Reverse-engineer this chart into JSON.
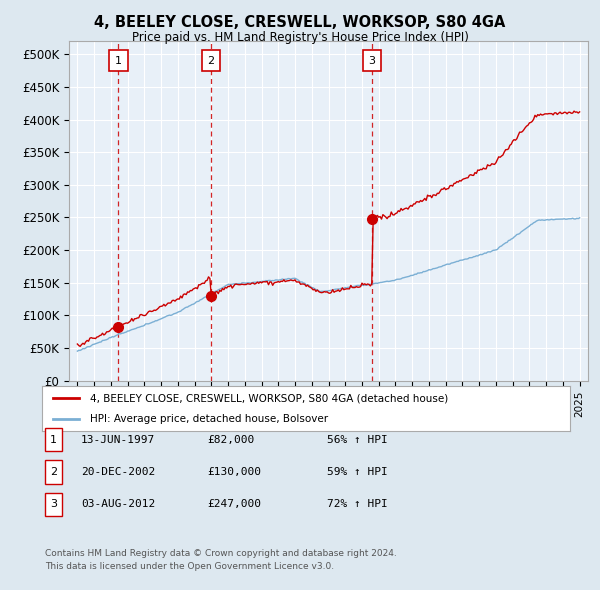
{
  "title": "4, BEELEY CLOSE, CRESWELL, WORKSOP, S80 4GA",
  "subtitle": "Price paid vs. HM Land Registry's House Price Index (HPI)",
  "legend_line1": "4, BEELEY CLOSE, CRESWELL, WORKSOP, S80 4GA (detached house)",
  "legend_line2": "HPI: Average price, detached house, Bolsover",
  "footer1": "Contains HM Land Registry data © Crown copyright and database right 2024.",
  "footer2": "This data is licensed under the Open Government Licence v3.0.",
  "sales": [
    {
      "num": 1,
      "date": "13-JUN-1997",
      "price": 82000,
      "year": 1997.45,
      "hpi_pct": "56% ↑ HPI"
    },
    {
      "num": 2,
      "date": "20-DEC-2002",
      "price": 130000,
      "year": 2002.97,
      "hpi_pct": "59% ↑ HPI"
    },
    {
      "num": 3,
      "date": "03-AUG-2012",
      "price": 247000,
      "year": 2012.59,
      "hpi_pct": "72% ↑ HPI"
    }
  ],
  "xlim": [
    1994.5,
    2025.5
  ],
  "ylim": [
    0,
    520000
  ],
  "yticks": [
    0,
    50000,
    100000,
    150000,
    200000,
    250000,
    300000,
    350000,
    400000,
    450000,
    500000
  ],
  "ytick_labels": [
    "£0",
    "£50K",
    "£100K",
    "£150K",
    "£200K",
    "£250K",
    "£300K",
    "£350K",
    "£400K",
    "£450K",
    "£500K"
  ],
  "red_color": "#cc0000",
  "blue_color": "#7bafd4",
  "bg_color": "#dde8f0",
  "plot_bg": "#e8f0f8",
  "grid_color": "#ffffff",
  "marker_color": "#cc0000",
  "sale_box_color": "#cc0000",
  "dashed_color": "#cc0000"
}
